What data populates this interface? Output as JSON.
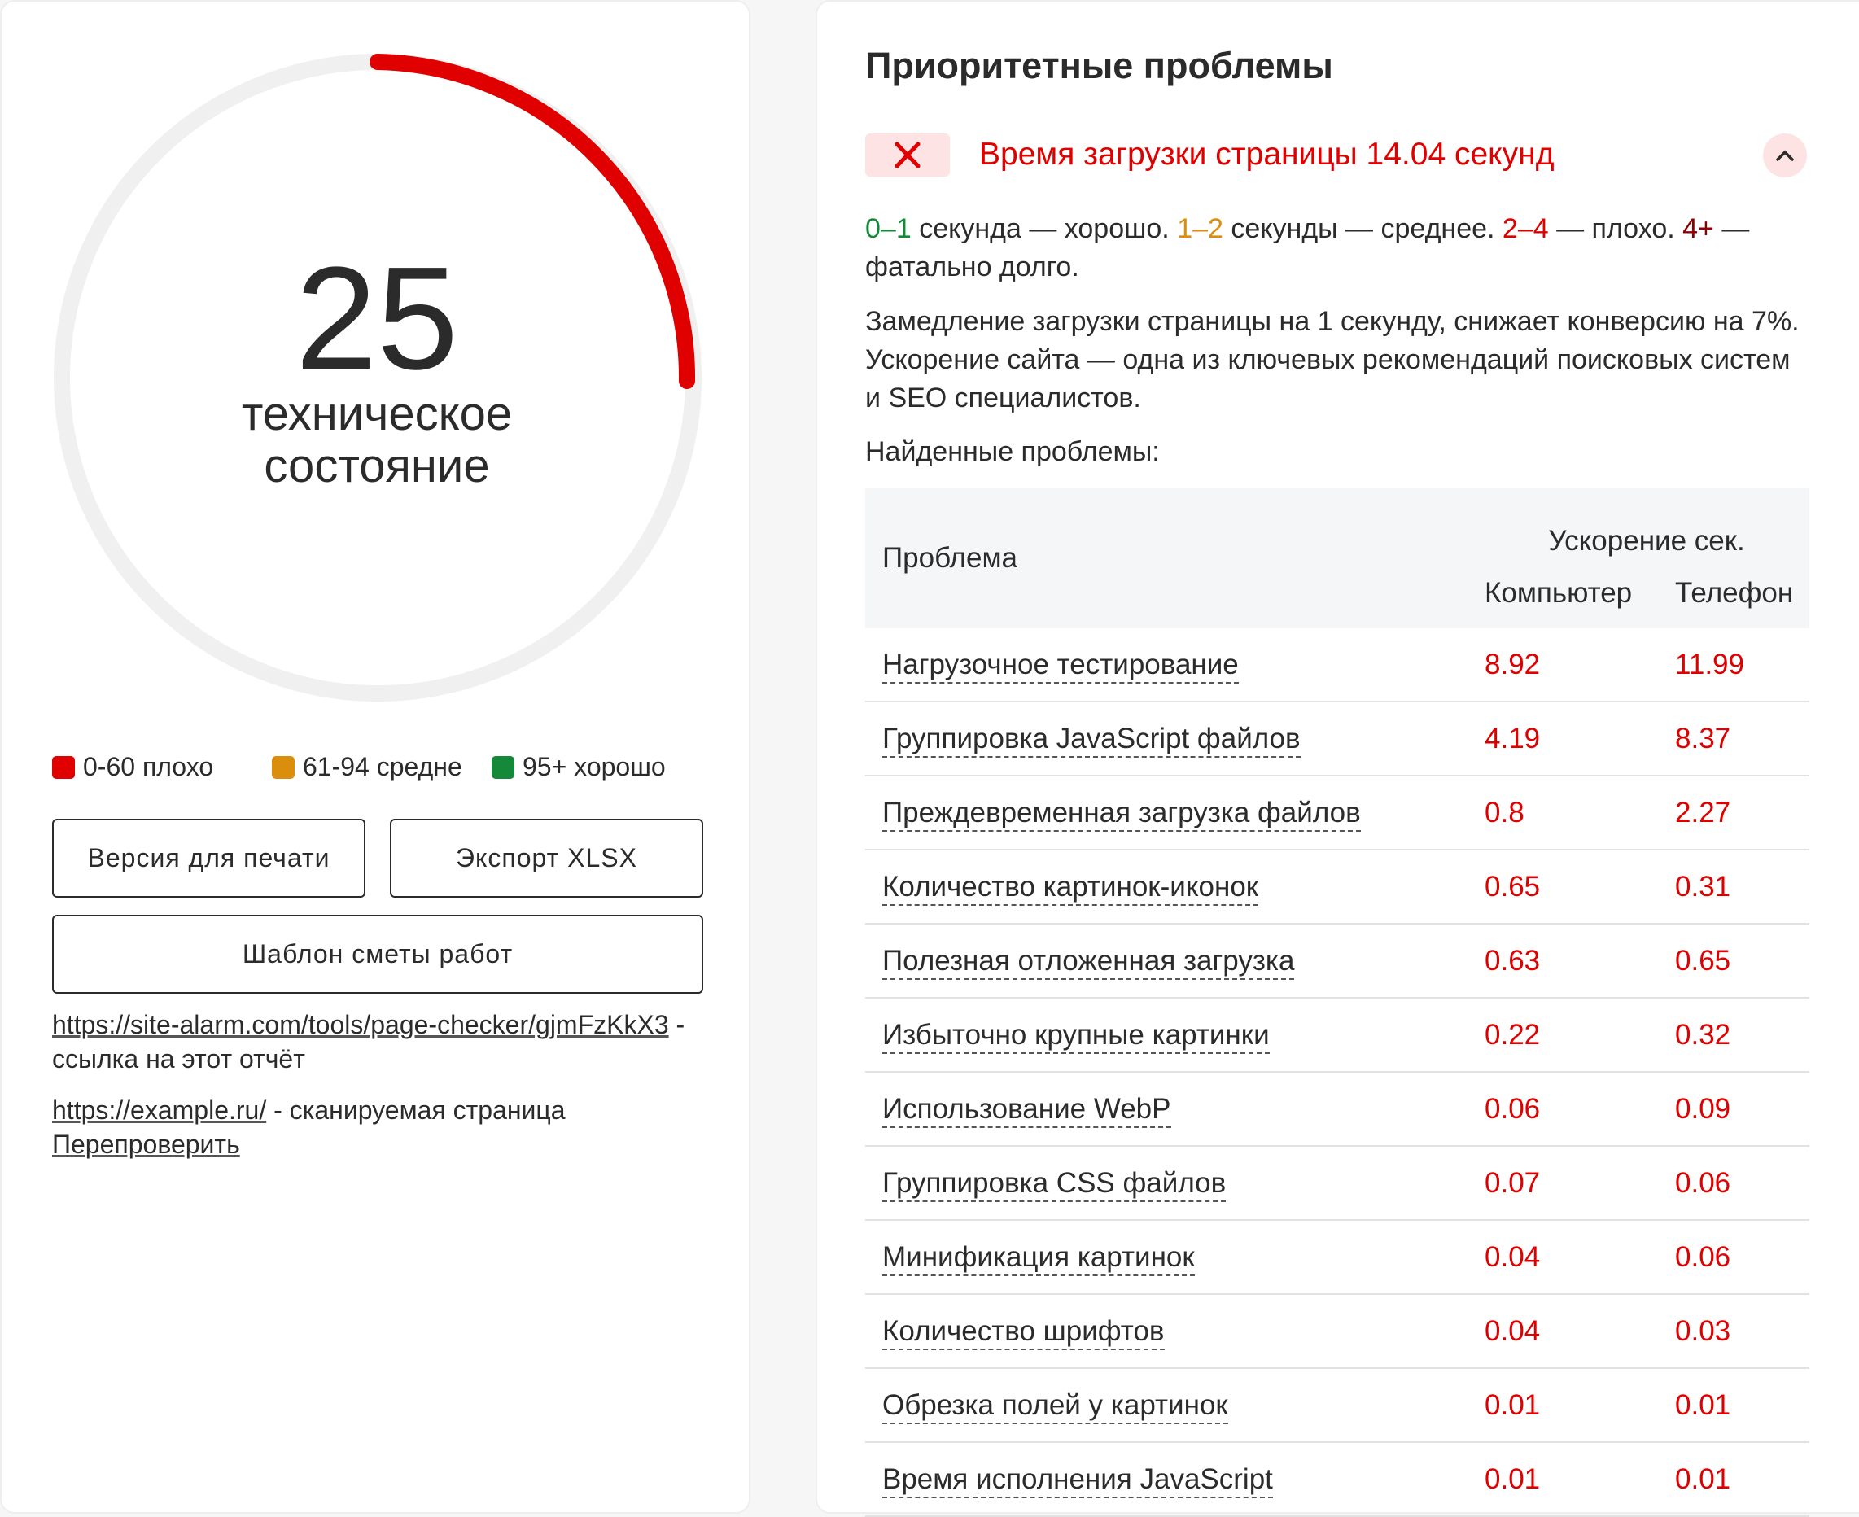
{
  "score": {
    "value": 25,
    "label": "техническое состояние"
  },
  "legend": [
    "0-60 плохо",
    "61-94 средне",
    "95+ хорошо"
  ],
  "buttons": [
    "Версия для печати",
    "Экспорт XLSX",
    "Шаблон сметы работ"
  ],
  "links": {
    "report_url": "https://site-alarm.com/tools/page-checker/gjmFzKkX3",
    "report_note": "- ссылка на этот отчёт",
    "page_url": "https://example.ru/",
    "page_note": "- сканируемая страница",
    "recheck": "Перепроверить"
  },
  "panel": {
    "title": "Приоритетные проблемы",
    "issue": "Время загрузки страницы 14.04 секунд",
    "scale_text": [
      "0–1",
      "секунда — хорошо.",
      "1–2",
      "секунды — среднее.",
      "2–4",
      "— плохо.",
      "4+",
      "— фатально долго."
    ],
    "description": "Замедление загрузки страницы на 1 секунду, снижает конверсию на 7%. Ускорение сайта — одна из ключевых рекомендаций поисковых систем и SEO специалистов.",
    "found": "Найденные проблемы:",
    "table": {
      "header": {
        "problem": "Проблема",
        "speedup": "Ускорение сек.",
        "desktop": "Компьютер",
        "mobile": "Телефон"
      },
      "rows": [
        [
          "Нагрузочное тестирование",
          8.92,
          11.99
        ],
        [
          "Группировка JavaScript файлов",
          4.19,
          8.37
        ],
        [
          "Преждевременная загрузка файлов",
          0.8,
          2.27
        ],
        [
          "Количество картинок-иконок",
          0.65,
          0.31
        ],
        [
          "Полезная отложенная загрузка",
          0.63,
          0.65
        ],
        [
          "Избыточно крупные картинки",
          0.22,
          0.32
        ],
        [
          "Использование WebP",
          0.06,
          0.09
        ],
        [
          "Группировка CSS файлов",
          0.07,
          0.06
        ],
        [
          "Минификация картинок",
          0.04,
          0.06
        ],
        [
          "Количество шрифтов",
          0.04,
          0.03
        ],
        [
          "Обрезка полей у картинок",
          0.01,
          0.01
        ],
        [
          "Время исполнения JavaScript",
          0.01,
          0.01
        ]
      ]
    }
  }
}
